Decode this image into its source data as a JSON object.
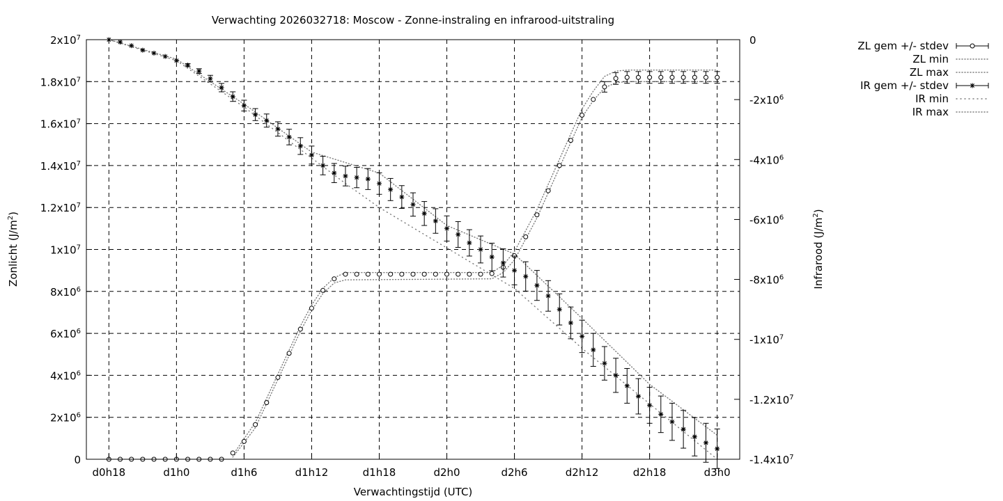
{
  "chart_data": {
    "type": "line",
    "title": "Verwachting 2026032718: Moscow - Zonne-instraling en infrarood-uitstraling",
    "xlabel": "Verwachtingstijd (UTC)",
    "ylabel_left": "Zonlicht (J/m²)",
    "ylabel_right": "Infrarood (J/m²)",
    "x_unit": "hours since d0h18 (3-hourly steps)",
    "xlim": [
      -2,
      56
    ],
    "x_ticks": [
      {
        "x": 0,
        "label": "d0h18"
      },
      {
        "x": 6,
        "label": "d1h0"
      },
      {
        "x": 12,
        "label": "d1h6"
      },
      {
        "x": 18,
        "label": "d1h12"
      },
      {
        "x": 24,
        "label": "d1h18"
      },
      {
        "x": 30,
        "label": "d2h0"
      },
      {
        "x": 36,
        "label": "d2h6"
      },
      {
        "x": 42,
        "label": "d2h12"
      },
      {
        "x": 48,
        "label": "d2h18"
      },
      {
        "x": 54,
        "label": "d3h0"
      }
    ],
    "ylim_left": [
      0,
      20000000
    ],
    "y_ticks_left": [
      {
        "v": 0,
        "m": "0",
        "e": ""
      },
      {
        "v": 2000000,
        "m": "2x10",
        "e": "6"
      },
      {
        "v": 4000000,
        "m": "4x10",
        "e": "6"
      },
      {
        "v": 6000000,
        "m": "6x10",
        "e": "6"
      },
      {
        "v": 8000000,
        "m": "8x10",
        "e": "6"
      },
      {
        "v": 10000000,
        "m": "1x10",
        "e": "7"
      },
      {
        "v": 12000000,
        "m": "1.2x10",
        "e": "7"
      },
      {
        "v": 14000000,
        "m": "1.4x10",
        "e": "7"
      },
      {
        "v": 16000000,
        "m": "1.6x10",
        "e": "7"
      },
      {
        "v": 18000000,
        "m": "1.8x10",
        "e": "7"
      },
      {
        "v": 20000000,
        "m": "2x10",
        "e": "7"
      }
    ],
    "ylim_right": [
      -14000000,
      0
    ],
    "y_ticks_right": [
      {
        "v": 0,
        "m": "0",
        "e": ""
      },
      {
        "v": -2000000,
        "m": "-2x10",
        "e": "6"
      },
      {
        "v": -4000000,
        "m": "-4x10",
        "e": "6"
      },
      {
        "v": -6000000,
        "m": "-6x10",
        "e": "6"
      },
      {
        "v": -8000000,
        "m": "-8x10",
        "e": "6"
      },
      {
        "v": -10000000,
        "m": "-1x10",
        "e": "7"
      },
      {
        "v": -12000000,
        "m": "-1.2x10",
        "e": "7"
      },
      {
        "v": -14000000,
        "m": "-1.4x10",
        "e": "7"
      }
    ],
    "grid": true,
    "legend_position": "outside-right",
    "legend": [
      {
        "label": "ZL gem +/- stdev",
        "style": "errorbar-circle"
      },
      {
        "label": "ZL min",
        "style": "dotted"
      },
      {
        "label": "ZL max",
        "style": "dotted"
      },
      {
        "label": "IR gem +/- stdev",
        "style": "errorbar-star"
      },
      {
        "label": "IR min",
        "style": "dotted-sparse"
      },
      {
        "label": "IR max",
        "style": "dotted"
      }
    ],
    "series": [
      {
        "name": "ZL gem +/- stdev",
        "axis": "left",
        "marker": "circle",
        "x": [
          0,
          1,
          2,
          3,
          4,
          5,
          6,
          7,
          8,
          9,
          10,
          11,
          12,
          13,
          14,
          15,
          16,
          17,
          18,
          19,
          20,
          21,
          22,
          23,
          24,
          25,
          26,
          27,
          28,
          29,
          30,
          31,
          32,
          33,
          34,
          35,
          36,
          37,
          38,
          39,
          40,
          41,
          42,
          43,
          44,
          45,
          46,
          47,
          48,
          49,
          50,
          51,
          52,
          53,
          54
        ],
        "y": [
          0,
          0,
          0,
          0,
          0,
          0,
          0,
          0,
          0,
          0,
          0,
          300000,
          850000,
          1650000,
          2700000,
          3900000,
          5050000,
          6200000,
          7200000,
          8050000,
          8600000,
          8820000,
          8820000,
          8820000,
          8820000,
          8820000,
          8820000,
          8820000,
          8820000,
          8820000,
          8820000,
          8820000,
          8820000,
          8820000,
          8850000,
          9150000,
          9700000,
          10600000,
          11650000,
          12800000,
          14000000,
          15200000,
          16400000,
          17150000,
          17750000,
          18150000,
          18200000,
          18200000,
          18200000,
          18200000,
          18200000,
          18200000,
          18200000,
          18200000,
          18200000
        ],
        "err": [
          0,
          0,
          0,
          0,
          0,
          0,
          0,
          0,
          0,
          0,
          0,
          0,
          0,
          0,
          0,
          0,
          0,
          0,
          0,
          0,
          0,
          0,
          0,
          0,
          0,
          0,
          0,
          0,
          0,
          0,
          0,
          0,
          0,
          0,
          0,
          0,
          0,
          0,
          0,
          0,
          0,
          0,
          0,
          0,
          250000,
          280000,
          280000,
          280000,
          280000,
          280000,
          280000,
          280000,
          280000,
          280000,
          280000
        ]
      },
      {
        "name": "ZL min",
        "axis": "left",
        "x": [
          11,
          13,
          15,
          17,
          18,
          19,
          20,
          21,
          34,
          35,
          36,
          38,
          40,
          42,
          43,
          44,
          45,
          46,
          47,
          48,
          50,
          52,
          54
        ],
        "y": [
          100000,
          1500000,
          3800000,
          6100000,
          7100000,
          7900000,
          8400000,
          8550000,
          8600000,
          8900000,
          9500000,
          11500000,
          13900000,
          16300000,
          17100000,
          17700000,
          17950000,
          18000000,
          18000000,
          18000000,
          18000000,
          18000000,
          18000000
        ]
      },
      {
        "name": "ZL max",
        "axis": "left",
        "x": [
          11,
          13,
          15,
          17,
          18,
          19,
          20,
          21,
          34,
          35,
          36,
          38,
          40,
          42,
          43,
          44,
          45,
          46,
          47,
          48,
          50,
          52,
          54
        ],
        "y": [
          200000,
          1750000,
          4050000,
          6350000,
          7350000,
          8150000,
          8650000,
          8900000,
          8900000,
          9250000,
          9900000,
          11900000,
          14300000,
          16700000,
          17550000,
          18250000,
          18500000,
          18550000,
          18550000,
          18550000,
          18550000,
          18550000,
          18550000
        ]
      },
      {
        "name": "IR gem +/- stdev",
        "axis": "right",
        "marker": "star",
        "x": [
          0,
          1,
          2,
          3,
          4,
          5,
          6,
          7,
          8,
          9,
          10,
          11,
          12,
          13,
          14,
          15,
          16,
          17,
          18,
          19,
          20,
          21,
          22,
          23,
          24,
          25,
          26,
          27,
          28,
          29,
          30,
          31,
          32,
          33,
          34,
          35,
          36,
          37,
          38,
          39,
          40,
          41,
          42,
          43,
          44,
          45,
          46,
          47,
          48,
          49,
          50,
          51,
          52,
          53,
          54
        ],
        "y": [
          0,
          -80000,
          -200000,
          -350000,
          -450000,
          -560000,
          -700000,
          -850000,
          -1050000,
          -1300000,
          -1600000,
          -1900000,
          -2200000,
          -2500000,
          -2700000,
          -2980000,
          -3250000,
          -3550000,
          -3850000,
          -4200000,
          -4450000,
          -4550000,
          -4600000,
          -4650000,
          -4800000,
          -5000000,
          -5250000,
          -5500000,
          -5800000,
          -6050000,
          -6300000,
          -6500000,
          -6780000,
          -7000000,
          -7250000,
          -7450000,
          -7700000,
          -7900000,
          -8200000,
          -8550000,
          -9000000,
          -9450000,
          -9900000,
          -10350000,
          -10800000,
          -11200000,
          -11550000,
          -11900000,
          -12200000,
          -12500000,
          -12750000,
          -13000000,
          -13250000,
          -13450000,
          -13650000
        ],
        "err": [
          0,
          0,
          0,
          0,
          0,
          0,
          0,
          50000,
          80000,
          110000,
          140000,
          160000,
          180000,
          200000,
          220000,
          240000,
          260000,
          280000,
          300000,
          310000,
          320000,
          330000,
          340000,
          350000,
          360000,
          370000,
          380000,
          390000,
          400000,
          410000,
          420000,
          430000,
          440000,
          450000,
          460000,
          470000,
          480000,
          490000,
          500000,
          510000,
          520000,
          530000,
          540000,
          550000,
          560000,
          570000,
          580000,
          590000,
          600000,
          610000,
          620000,
          630000,
          640000,
          650000,
          660000
        ]
      },
      {
        "name": "IR min",
        "axis": "right",
        "x": [
          0,
          6,
          12,
          18,
          21,
          24,
          30,
          36,
          42,
          48,
          54
        ],
        "y": [
          0,
          -700000,
          -2250000,
          -3950000,
          -4800000,
          -5600000,
          -6950000,
          -8300000,
          -10300000,
          -12150000,
          -14000000
        ]
      },
      {
        "name": "IR max",
        "axis": "right",
        "x": [
          0,
          6,
          12,
          18,
          24,
          30,
          36,
          42,
          48,
          54
        ],
        "y": [
          0,
          -650000,
          -2150000,
          -3750000,
          -4450000,
          -6200000,
          -7150000,
          -9300000,
          -11500000,
          -13200000
        ]
      }
    ]
  }
}
